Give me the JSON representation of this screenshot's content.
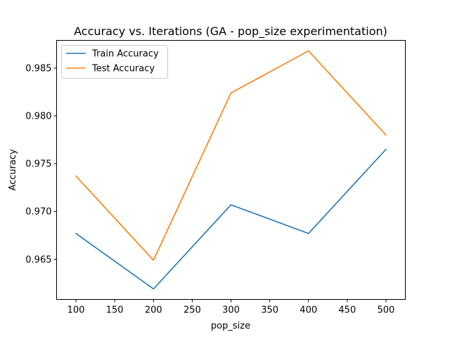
{
  "chart_data": {
    "type": "line",
    "title": "Accuracy vs. Iterations (GA - pop_size experimentation)",
    "xlabel": "pop_size",
    "ylabel": "Accuracy",
    "x": [
      100,
      200,
      300,
      400,
      500
    ],
    "xlim": [
      75,
      525
    ],
    "ylim": [
      0.9608,
      0.9879
    ],
    "xticks": [
      100,
      150,
      200,
      250,
      300,
      350,
      400,
      450,
      500
    ],
    "yticks": [
      0.965,
      0.97,
      0.975,
      0.98,
      0.985
    ],
    "ytick_labels": [
      "0.965",
      "0.970",
      "0.975",
      "0.980",
      "0.985"
    ],
    "grid": false,
    "legend_position": "upper-left",
    "series": [
      {
        "name": "Train Accuracy",
        "color": "#1f77b4",
        "values": [
          0.9677,
          0.9619,
          0.9707,
          0.9677,
          0.9765
        ]
      },
      {
        "name": "Test Accuracy",
        "color": "#ff7f0e",
        "values": [
          0.9737,
          0.9649,
          0.9824,
          0.9868,
          0.978
        ]
      }
    ]
  }
}
